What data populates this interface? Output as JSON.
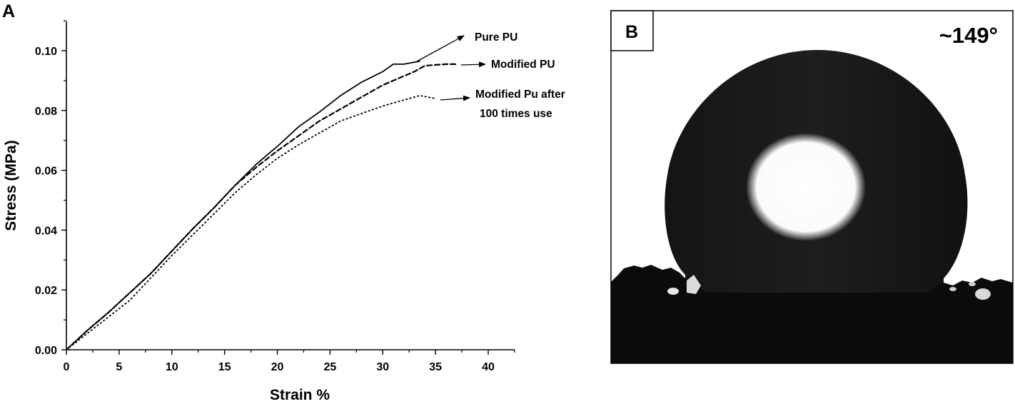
{
  "panel_a": {
    "label": "A"
  },
  "panel_b": {
    "label": "B",
    "contact_angle": "~149°"
  },
  "chart_data": {
    "type": "line",
    "xlabel": "Strain %",
    "ylabel": "Stress (MPa)",
    "xlim": [
      0,
      42
    ],
    "ylim": [
      0,
      0.11
    ],
    "xticks": [
      0,
      5,
      10,
      15,
      20,
      25,
      30,
      35,
      40
    ],
    "xtick_labels": [
      "0",
      "5",
      "10",
      "15",
      "20",
      "25",
      "30",
      "35",
      "40"
    ],
    "yticks": [
      0.0,
      0.02,
      0.04,
      0.06,
      0.08,
      0.1
    ],
    "ytick_labels": [
      "0.00",
      "0.02",
      "0.04",
      "0.06",
      "0.08",
      "0.10"
    ],
    "grid": false,
    "series": [
      {
        "name": "Pure PU",
        "style": "solid",
        "x": [
          0,
          2,
          4,
          6,
          8,
          10,
          12,
          14,
          16,
          18,
          20,
          22,
          24,
          26,
          28,
          30,
          31,
          32,
          33.5
        ],
        "y": [
          0.0,
          0.0065,
          0.0125,
          0.019,
          0.0255,
          0.033,
          0.0405,
          0.0475,
          0.055,
          0.062,
          0.068,
          0.0745,
          0.0795,
          0.085,
          0.0895,
          0.093,
          0.0955,
          0.0955,
          0.0965
        ]
      },
      {
        "name": "Modified PU",
        "style": "dashed",
        "x": [
          0,
          2,
          4,
          6,
          8,
          10,
          12,
          14,
          16,
          18,
          20,
          22,
          24,
          26,
          28,
          30,
          32,
          33,
          34,
          36,
          37
        ],
        "y": [
          0.0,
          0.0065,
          0.0125,
          0.019,
          0.0255,
          0.033,
          0.0405,
          0.0475,
          0.055,
          0.061,
          0.0665,
          0.0715,
          0.0765,
          0.0805,
          0.0845,
          0.0885,
          0.0915,
          0.093,
          0.095,
          0.0955,
          0.0955
        ]
      },
      {
        "name": "Modified Pu after 100 times use",
        "style": "dotted",
        "x": [
          0,
          2,
          4,
          6,
          8,
          10,
          12,
          14,
          16,
          18,
          20,
          22,
          24,
          26,
          28,
          30,
          32,
          33.5,
          35
        ],
        "y": [
          0.0,
          0.0055,
          0.011,
          0.0165,
          0.024,
          0.0315,
          0.0385,
          0.0455,
          0.0525,
          0.0585,
          0.064,
          0.0685,
          0.0725,
          0.0765,
          0.079,
          0.0815,
          0.0835,
          0.085,
          0.084
        ]
      }
    ],
    "annotations": [
      {
        "lines": [
          "Pure PU"
        ]
      },
      {
        "lines": [
          "Modified PU"
        ]
      },
      {
        "lines": [
          "Modified Pu after",
          "100 times use"
        ]
      }
    ]
  }
}
